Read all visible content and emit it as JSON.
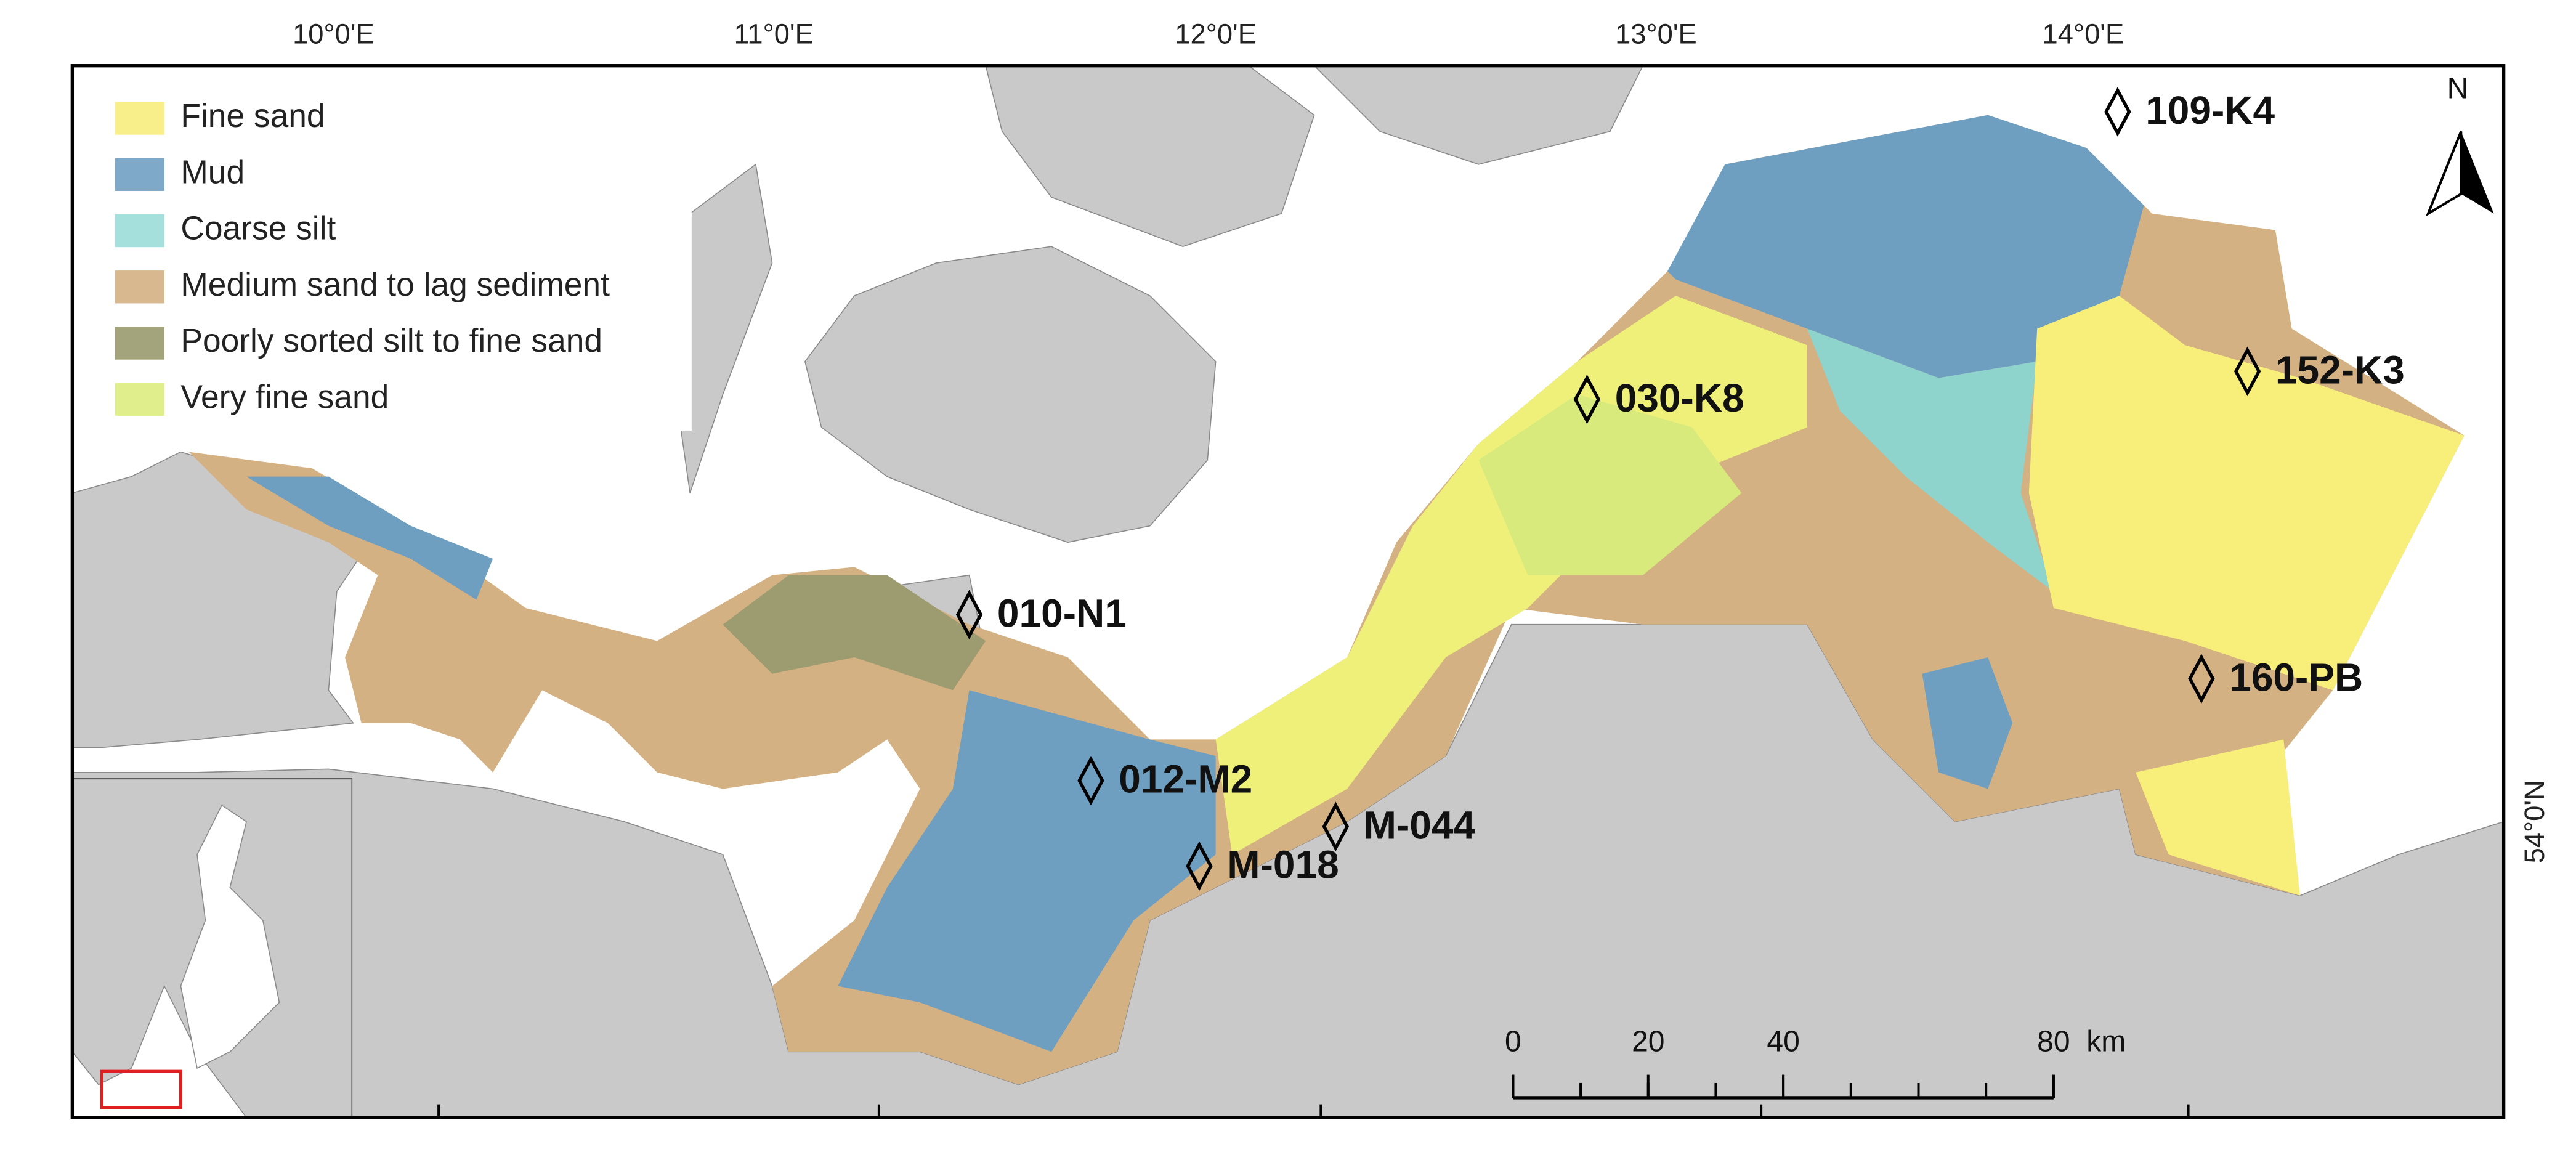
{
  "legend": [
    {
      "label": "Fine sand",
      "color": "#f8ef8a"
    },
    {
      "label": "Mud",
      "color": "#7fa9c8"
    },
    {
      "label": "Coarse silt",
      "color": "#a6e0dc"
    },
    {
      "label": "Medium sand to lag sediment",
      "color": "#d8b98f"
    },
    {
      "label": "Poorly sorted silt to fine sand",
      "color": "#a4a47c"
    },
    {
      "label": "Very fine sand",
      "color": "#e0ef8c"
    }
  ],
  "longitude_labels": [
    "10°0'E",
    "11°0'E",
    "12°0'E",
    "13°0'E",
    "14°0'E"
  ],
  "latitude_labels": [
    "54°0'N"
  ],
  "stations": [
    "109-K4",
    "152-K3",
    "030-K8",
    "010-N1",
    "160-PB",
    "012-M2",
    "M-044",
    "M-018"
  ],
  "scale_bar": {
    "ticks": [
      0,
      20,
      40,
      80
    ],
    "unit": "km"
  },
  "north_arrow": "N"
}
